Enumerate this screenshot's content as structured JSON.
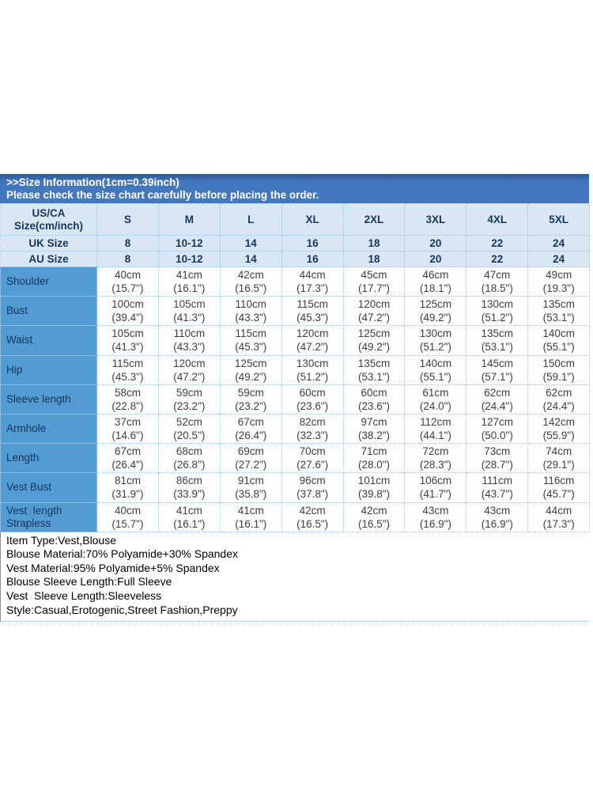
{
  "banner": {
    "line1": ">>Size Information(1cm=0.39inch)",
    "line2": "Please check the size chart carefully before placing the order."
  },
  "table": {
    "corner_line1": "US/CA",
    "corner_line2": "Size(cm/inch)",
    "size_columns": [
      "S",
      "M",
      "L",
      "XL",
      "2XL",
      "3XL",
      "4XL",
      "5XL"
    ],
    "uk_row": {
      "label": "UK Size",
      "values": [
        "8",
        "10-12",
        "14",
        "16",
        "18",
        "20",
        "22",
        "24"
      ]
    },
    "au_row": {
      "label": "AU Size",
      "values": [
        "8",
        "10-12",
        "14",
        "16",
        "18",
        "20",
        "22",
        "24"
      ]
    },
    "rows": [
      {
        "label": "Shoulder",
        "cells": [
          {
            "cm": "40cm",
            "in": "(15.7\")"
          },
          {
            "cm": "41cm",
            "in": "(16.1\")"
          },
          {
            "cm": "42cm",
            "in": "(16.5\")"
          },
          {
            "cm": "44cm",
            "in": "(17.3\")"
          },
          {
            "cm": "45cm",
            "in": "(17.7\")"
          },
          {
            "cm": "46cm",
            "in": "(18.1\")"
          },
          {
            "cm": "47cm",
            "in": "(18.5\")"
          },
          {
            "cm": "49cm",
            "in": "(19.3\")"
          }
        ]
      },
      {
        "label": "Bust",
        "cells": [
          {
            "cm": "100cm",
            "in": "(39.4\")"
          },
          {
            "cm": "105cm",
            "in": "(41.3\")"
          },
          {
            "cm": "110cm",
            "in": "(43.3\")"
          },
          {
            "cm": "115cm",
            "in": "(45.3\")"
          },
          {
            "cm": "120cm",
            "in": "(47.2\")"
          },
          {
            "cm": "125cm",
            "in": "(49.2\")"
          },
          {
            "cm": "130cm",
            "in": "(51.2\")"
          },
          {
            "cm": "135cm",
            "in": "(53.1\")"
          }
        ]
      },
      {
        "label": "Waist",
        "cells": [
          {
            "cm": "105cm",
            "in": "(41.3\")"
          },
          {
            "cm": "110cm",
            "in": "(43.3\")"
          },
          {
            "cm": "115cm",
            "in": "(45.3\")"
          },
          {
            "cm": "120cm",
            "in": "(47.2\")"
          },
          {
            "cm": "125cm",
            "in": "(49.2\")"
          },
          {
            "cm": "130cm",
            "in": "(51.2\")"
          },
          {
            "cm": "135cm",
            "in": "(53.1\")"
          },
          {
            "cm": "140cm",
            "in": "(55.1\")"
          }
        ]
      },
      {
        "label": "Hip",
        "cells": [
          {
            "cm": "115cm",
            "in": "(45.3\")"
          },
          {
            "cm": "120cm",
            "in": "(47.2\")"
          },
          {
            "cm": "125cm",
            "in": "(49.2\")"
          },
          {
            "cm": "130cm",
            "in": "(51.2\")"
          },
          {
            "cm": "135cm",
            "in": "(53.1\")"
          },
          {
            "cm": "140cm",
            "in": "(55.1\")"
          },
          {
            "cm": "145cm",
            "in": "(57.1\")"
          },
          {
            "cm": "150cm",
            "in": "(59.1\")"
          }
        ]
      },
      {
        "label": "Sleeve length",
        "cells": [
          {
            "cm": "58cm",
            "in": "(22.8\")"
          },
          {
            "cm": "59cm",
            "in": "(23.2\")"
          },
          {
            "cm": "59cm",
            "in": "(23.2\")"
          },
          {
            "cm": "60cm",
            "in": "(23.6\")"
          },
          {
            "cm": "60cm",
            "in": "(23.6\")"
          },
          {
            "cm": "61cm",
            "in": "(24.0\")"
          },
          {
            "cm": "62cm",
            "in": "(24.4\")"
          },
          {
            "cm": "62cm",
            "in": "(24.4\")"
          }
        ]
      },
      {
        "label": "Armhole",
        "cells": [
          {
            "cm": "37cm",
            "in": "(14.6\")"
          },
          {
            "cm": "52cm",
            "in": "(20.5\")"
          },
          {
            "cm": "67cm",
            "in": "(26.4\")"
          },
          {
            "cm": "82cm",
            "in": "(32.3\")"
          },
          {
            "cm": "97cm",
            "in": "(38.2\")"
          },
          {
            "cm": "112cm",
            "in": "(44.1\")"
          },
          {
            "cm": "127cm",
            "in": "(50.0\")"
          },
          {
            "cm": "142cm",
            "in": "(55.9\")"
          }
        ]
      },
      {
        "label": "Length",
        "cells": [
          {
            "cm": "67cm",
            "in": "(26.4\")"
          },
          {
            "cm": "68cm",
            "in": "(26.8\")"
          },
          {
            "cm": "69cm",
            "in": "(27.2\")"
          },
          {
            "cm": "70cm",
            "in": "(27.6\")"
          },
          {
            "cm": "71cm",
            "in": "(28.0\")"
          },
          {
            "cm": "72cm",
            "in": "(28.3\")"
          },
          {
            "cm": "73cm",
            "in": "(28.7\")"
          },
          {
            "cm": "74cm",
            "in": "(29.1\")"
          }
        ]
      },
      {
        "label": "Vest Bust",
        "cells": [
          {
            "cm": "81cm",
            "in": "(31.9\")"
          },
          {
            "cm": "86cm",
            "in": "(33.9\")"
          },
          {
            "cm": "91cm",
            "in": "(35.8\")"
          },
          {
            "cm": "96cm",
            "in": "(37.8\")"
          },
          {
            "cm": "101cm",
            "in": "(39.8\")"
          },
          {
            "cm": "106cm",
            "in": "(41.7\")"
          },
          {
            "cm": "111cm",
            "in": "(43.7\")"
          },
          {
            "cm": "116cm",
            "in": "(45.7\")"
          }
        ]
      },
      {
        "label": "Vest  length\nStrapless",
        "cells": [
          {
            "cm": "40cm",
            "in": "(15.7\")"
          },
          {
            "cm": "41cm",
            "in": "(16.1\")"
          },
          {
            "cm": "41cm",
            "in": "(16.1\")"
          },
          {
            "cm": "42cm",
            "in": "(16.5\")"
          },
          {
            "cm": "42cm",
            "in": "(16.5\")"
          },
          {
            "cm": "43cm",
            "in": "(16.9\")"
          },
          {
            "cm": "43cm",
            "in": "(16.9\")"
          },
          {
            "cm": "44cm",
            "in": "(17.3\")"
          }
        ]
      }
    ]
  },
  "details": {
    "lines": [
      "Item Type:Vest,Blouse",
      "Blouse Material:70% Polyamide+30% Spandex",
      "Vest Material:95% Polyamide+5% Spandex",
      "Blouse Sleeve Length:Full Sleeve",
      "Vest  Sleeve Length:Sleeveless",
      "Style:Casual,Erotogenic,Street Fashion,Preppy"
    ]
  },
  "colors": {
    "banner_blue": "#4478be",
    "banner_blue_dark": "#31598e",
    "header_light_blue": "#d9e6f4",
    "label_column_blue": "#529bd3",
    "navy_text": "#17365d",
    "grid_dotted_blue": "#9cc2e5",
    "body_text": "#3f3f3f"
  }
}
